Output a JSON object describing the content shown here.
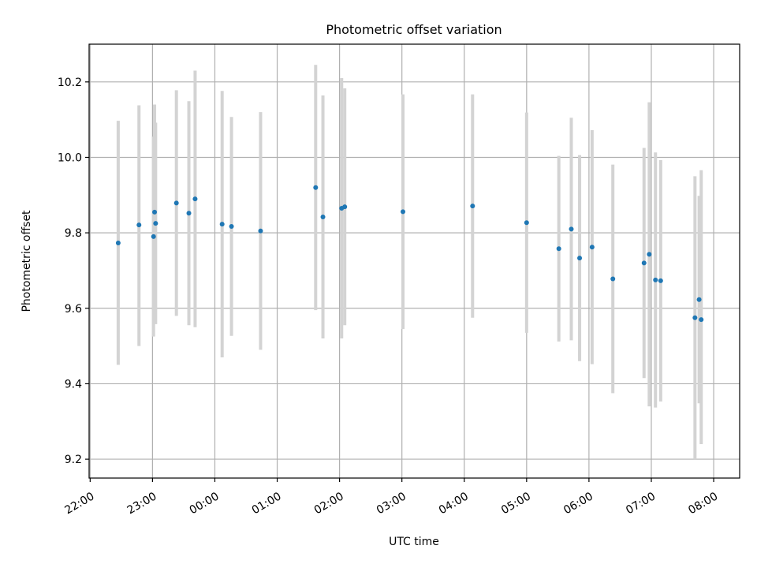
{
  "chart_data": {
    "type": "scatter",
    "title": "Photometric offset variation",
    "xlabel": "UTC time",
    "ylabel": "Photometric offset",
    "grid": true,
    "legend": "none",
    "x_time_unit": "UTC (day 1 evening to day 2 morning)",
    "xlim": [
      "21:59",
      "08:25"
    ],
    "ylim": [
      9.15,
      10.3
    ],
    "xticks": [
      "22:00",
      "23:00",
      "00:00",
      "01:00",
      "02:00",
      "03:00",
      "04:00",
      "05:00",
      "06:00",
      "07:00",
      "08:00"
    ],
    "yticks": [
      "9.2",
      "9.4",
      "9.6",
      "9.8",
      "10.0",
      "10.2"
    ],
    "colors": {
      "points": "#1f77b4",
      "errorbars": "#d3d3d3",
      "grid": "#b0b0b0"
    },
    "series": [
      {
        "points": [
          {
            "x": "22:27",
            "y": 9.773,
            "ylo": 9.45,
            "yhi": 10.097
          },
          {
            "x": "22:47",
            "y": 9.821,
            "ylo": 9.5,
            "yhi": 10.138
          },
          {
            "x": "23:01",
            "y": 9.79,
            "ylo": 9.525,
            "yhi": 10.055
          },
          {
            "x": "23:02",
            "y": 9.855,
            "ylo": 9.57,
            "yhi": 10.14
          },
          {
            "x": "23:03",
            "y": 9.825,
            "ylo": 9.558,
            "yhi": 10.092
          },
          {
            "x": "23:23",
            "y": 9.879,
            "ylo": 9.58,
            "yhi": 10.178
          },
          {
            "x": "23:35",
            "y": 9.852,
            "ylo": 9.555,
            "yhi": 10.149
          },
          {
            "x": "23:41",
            "y": 9.89,
            "ylo": 9.55,
            "yhi": 10.23
          },
          {
            "x": "00:07",
            "y": 9.823,
            "ylo": 9.47,
            "yhi": 10.176
          },
          {
            "x": "00:16",
            "y": 9.817,
            "ylo": 9.527,
            "yhi": 10.107
          },
          {
            "x": "00:44",
            "y": 9.805,
            "ylo": 9.49,
            "yhi": 10.12
          },
          {
            "x": "01:37",
            "y": 9.92,
            "ylo": 9.595,
            "yhi": 10.245
          },
          {
            "x": "01:44",
            "y": 9.842,
            "ylo": 9.52,
            "yhi": 10.164
          },
          {
            "x": "02:02",
            "y": 9.865,
            "ylo": 9.52,
            "yhi": 10.21
          },
          {
            "x": "02:05",
            "y": 9.869,
            "ylo": 9.555,
            "yhi": 10.183
          },
          {
            "x": "03:01",
            "y": 9.856,
            "ylo": 9.545,
            "yhi": 10.167
          },
          {
            "x": "04:08",
            "y": 9.871,
            "ylo": 9.575,
            "yhi": 10.167
          },
          {
            "x": "05:00",
            "y": 9.827,
            "ylo": 9.535,
            "yhi": 10.119
          },
          {
            "x": "05:31",
            "y": 9.758,
            "ylo": 9.512,
            "yhi": 10.004
          },
          {
            "x": "05:43",
            "y": 9.81,
            "ylo": 9.515,
            "yhi": 10.105
          },
          {
            "x": "05:51",
            "y": 9.733,
            "ylo": 9.46,
            "yhi": 10.006
          },
          {
            "x": "06:03",
            "y": 9.762,
            "ylo": 9.452,
            "yhi": 10.072
          },
          {
            "x": "06:23",
            "y": 9.678,
            "ylo": 9.375,
            "yhi": 9.981
          },
          {
            "x": "06:53",
            "y": 9.72,
            "ylo": 9.415,
            "yhi": 10.025
          },
          {
            "x": "06:58",
            "y": 9.743,
            "ylo": 9.34,
            "yhi": 10.146
          },
          {
            "x": "07:04",
            "y": 9.675,
            "ylo": 9.337,
            "yhi": 10.013
          },
          {
            "x": "07:09",
            "y": 9.673,
            "ylo": 9.353,
            "yhi": 9.993
          },
          {
            "x": "07:42",
            "y": 9.575,
            "ylo": 9.2,
            "yhi": 9.95
          },
          {
            "x": "07:46",
            "y": 9.623,
            "ylo": 9.348,
            "yhi": 9.898
          },
          {
            "x": "07:48",
            "y": 9.57,
            "ylo": 9.24,
            "yhi": 9.966
          }
        ]
      }
    ]
  }
}
